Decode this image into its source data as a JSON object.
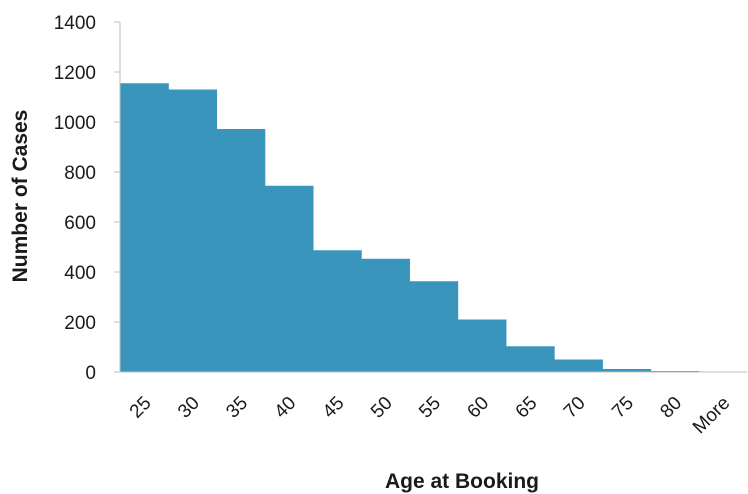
{
  "chart_data": {
    "type": "bar",
    "categories": [
      "25",
      "30",
      "35",
      "40",
      "45",
      "50",
      "55",
      "60",
      "65",
      "70",
      "75",
      "80",
      "More"
    ],
    "values": [
      1155,
      1130,
      972,
      745,
      487,
      453,
      363,
      210,
      103,
      50,
      12,
      4,
      1
    ],
    "xlabel": "Age at Booking",
    "ylabel": "Number of Cases",
    "ylim": [
      0,
      1400
    ],
    "yticks": [
      0,
      200,
      400,
      600,
      800,
      1000,
      1200,
      1400
    ],
    "grid": false,
    "legend": "none",
    "bar_color": "#3a95bd",
    "axis_color": "#bfbfbf"
  }
}
